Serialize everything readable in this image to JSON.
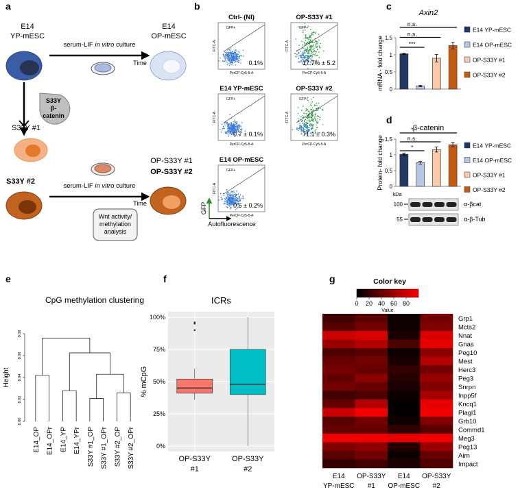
{
  "panel_labels": [
    "a",
    "b",
    "c",
    "d",
    "e",
    "f",
    "g"
  ],
  "panel_a": {
    "start_cell": [
      "E14",
      "YP-mESC"
    ],
    "culture_label": [
      "serum-LIF",
      "in vitro",
      "culture"
    ],
    "time_label": "Time",
    "end_cell": [
      "E14",
      "OP-mESC"
    ],
    "transgene": [
      "S33Y",
      "β-",
      "catenin"
    ],
    "clone_1": "S33Y #1",
    "clone_2": "S33Y #2",
    "op_clone_1": "OP-S33Y #1",
    "op_clone_2": "OP-S33Y #2",
    "analysis": [
      "Wnt activity/",
      "methylation",
      "analysis"
    ]
  },
  "panel_b": {
    "gate_label": "GFP+",
    "x_axis": "PerCP-Cy5-5-A",
    "y_axis": "FITC-A",
    "gfp_axis": "GFP",
    "autofluorescence_axis": "Autofluorescence",
    "plots": [
      {
        "title": "Ctrl- (NI)",
        "title_color": "#000000",
        "percent": "0.1%",
        "positive": false
      },
      {
        "title": "OP-S33Y #1",
        "title_color": "#f4b183",
        "percent": "17.7% ± 5.2",
        "positive": true
      },
      {
        "title": "E14 YP-mESC",
        "title_color": "#1f3864",
        "percent": "0.7 ± 0.1%",
        "positive": false
      },
      {
        "title": "OP-S33Y #2",
        "title_color": "#843c0c",
        "percent": "71.1 ± 0.3%",
        "positive": true
      },
      {
        "title": "E14 OP-mESC",
        "title_color": "#8faadc",
        "percent": "0.6 ± 0.2%",
        "positive": false
      }
    ]
  },
  "chart_data": [
    {
      "type": "bar",
      "title": "Axin2",
      "ylabel": "mRNA - fold change",
      "ylim": [
        0,
        1.5
      ],
      "yticks": [
        0,
        0.5,
        1,
        1.5
      ],
      "series": [
        {
          "name": "E14 YP-mESC",
          "color": "#1f3864",
          "values": [
            1.03
          ],
          "errors": [
            0.02
          ]
        },
        {
          "name": "E14 OP-mESC",
          "color": "#b4c7e7",
          "values": [
            0.09
          ],
          "errors": [
            0.02
          ]
        },
        {
          "name": "OP-S33Y #1",
          "color": "#f8cbad",
          "values": [
            0.9
          ],
          "errors": [
            0.11
          ]
        },
        {
          "name": "OP-S33Y #2",
          "color": "#c55a11",
          "values": [
            1.27
          ],
          "errors": [
            0.1
          ]
        }
      ],
      "significance": [
        {
          "label": "n.s.",
          "from": 0,
          "to": 3
        },
        {
          "label": "n.s.",
          "from": 0,
          "to": 2
        },
        {
          "label": "***",
          "from": 0,
          "to": 1
        }
      ]
    },
    {
      "type": "bar",
      "title": "β-catenin",
      "ylabel": "Protein- fold change",
      "ylim": [
        0,
        1.5
      ],
      "yticks": [
        0,
        0.5,
        1,
        1.5
      ],
      "series": [
        {
          "name": "E14 YP-mESC",
          "color": "#1f3864",
          "values": [
            1.02
          ],
          "errors": [
            0.03
          ]
        },
        {
          "name": "E14 OP-mESC",
          "color": "#b4c7e7",
          "values": [
            0.75
          ],
          "errors": [
            0.04
          ]
        },
        {
          "name": "OP-S33Y #1",
          "color": "#f8cbad",
          "values": [
            1.17
          ],
          "errors": [
            0.08
          ]
        },
        {
          "name": "OP-S33Y #2",
          "color": "#c55a11",
          "values": [
            1.32
          ],
          "errors": [
            0.07
          ]
        }
      ],
      "significance": [
        {
          "label": "*",
          "from": 0,
          "to": 3
        },
        {
          "label": "n.s.",
          "from": 0,
          "to": 2
        },
        {
          "label": "*",
          "from": 0,
          "to": 1
        }
      ],
      "blot": {
        "unit": "kDa",
        "markers": [
          "100",
          "55"
        ],
        "labels": [
          "α-βcat",
          "α-β-Tub"
        ]
      }
    },
    {
      "type": "dendrogram",
      "title": "CpG methylation clustering",
      "ylabel": "Height",
      "ylim": [
        0,
        0.08
      ],
      "yticks": [
        {
          "value": 0,
          "label": "0.00"
        },
        {
          "value": 0.02,
          "label": "0.02"
        },
        {
          "value": 0.04,
          "label": "0.04"
        },
        {
          "value": 0.06,
          "label": "0.06"
        },
        {
          "value": 0.08,
          "label": "0.08"
        }
      ],
      "leaves": [
        {
          "name": "E14_OP",
          "color": "#1f3864"
        },
        {
          "name": "E14_OPr",
          "color": "#1f3864"
        },
        {
          "name": "E14_YP",
          "color": "#8faadc"
        },
        {
          "name": "E14_YPr",
          "color": "#8faadc"
        },
        {
          "name": "S33Y #1_OP",
          "color": "#f4b183"
        },
        {
          "name": "S33Y #1_OPr",
          "color": "#f4b183"
        },
        {
          "name": "S33Y #2_OP",
          "color": "#843c0c"
        },
        {
          "name": "S33Y #2_OPr",
          "color": "#843c0c"
        }
      ],
      "merges": [
        {
          "children": [
            2,
            3
          ],
          "height": 0.028
        },
        {
          "children": [
            4,
            5
          ],
          "height": 0.021
        },
        {
          "children": [
            6,
            7
          ],
          "height": 0.026
        },
        {
          "children": [
            9,
            10
          ],
          "height": 0.043
        },
        {
          "children": [
            8,
            11
          ],
          "height": 0.0625
        },
        {
          "children": [
            0,
            1
          ],
          "height": 0.042
        },
        {
          "children": [
            13,
            12
          ],
          "height": 0.076
        }
      ]
    },
    {
      "type": "box",
      "title": "ICRs",
      "ylabel": "% mCpG",
      "ylim": [
        0,
        100
      ],
      "yticks": [
        {
          "value": 0,
          "label": "0%"
        },
        {
          "value": 25,
          "label": "25%"
        },
        {
          "value": 50,
          "label": "50%"
        },
        {
          "value": 75,
          "label": "75%"
        },
        {
          "value": 100,
          "label": "100%"
        }
      ],
      "grid": true,
      "boxes": [
        {
          "category": [
            "OP-S33Y",
            "#1"
          ],
          "color": "#f8766d",
          "whisker_low": 36,
          "q1": 41,
          "median": 45,
          "q3": 52,
          "whisker_high": 60,
          "outliers": [
            96,
            95,
            90
          ]
        },
        {
          "category": [
            "OP-S33Y",
            "#2"
          ],
          "color": "#00bfc4",
          "whisker_low": 0,
          "q1": 40,
          "median": 48,
          "q3": 75,
          "whisker_high": 100,
          "outliers": []
        }
      ]
    },
    {
      "type": "heatmap",
      "key_title": "Color key",
      "key_label": "Value",
      "zlim": [
        0,
        100
      ],
      "key_ticks": [
        0,
        20,
        40,
        60,
        80
      ],
      "colors": [
        "#000000",
        "#ff0000"
      ],
      "columns": [
        [
          "E14",
          "YP-mESC"
        ],
        [
          "OP-S33Y",
          "#1"
        ],
        [
          "E14",
          "OP-mESC"
        ],
        [
          "OP-S33Y",
          "#2"
        ]
      ],
      "rows": [
        "Grp1",
        "Mcts2",
        "Nnat",
        "Gnas",
        "Peg10",
        "Mest",
        "Herc3",
        "Peg3",
        "Snrpn",
        "Inpp5f",
        "Kncq1",
        "Plagl1",
        "Grb10",
        "Commd1",
        "Meg3",
        "Peg13",
        "Airn",
        "Impact"
      ],
      "values": [
        [
          25,
          35,
          5,
          45
        ],
        [
          35,
          45,
          5,
          50
        ],
        [
          80,
          85,
          10,
          85
        ],
        [
          60,
          70,
          30,
          90
        ],
        [
          30,
          35,
          5,
          55
        ],
        [
          40,
          45,
          10,
          70
        ],
        [
          45,
          40,
          20,
          45
        ],
        [
          40,
          55,
          15,
          60
        ],
        [
          45,
          40,
          10,
          50
        ],
        [
          25,
          30,
          5,
          65
        ],
        [
          40,
          70,
          2,
          90
        ],
        [
          80,
          95,
          2,
          95
        ],
        [
          35,
          45,
          5,
          50
        ],
        [
          40,
          40,
          20,
          35
        ],
        [
          95,
          95,
          90,
          95
        ],
        [
          50,
          55,
          15,
          60
        ],
        [
          35,
          45,
          5,
          40
        ],
        [
          20,
          25,
          10,
          30
        ]
      ]
    }
  ]
}
